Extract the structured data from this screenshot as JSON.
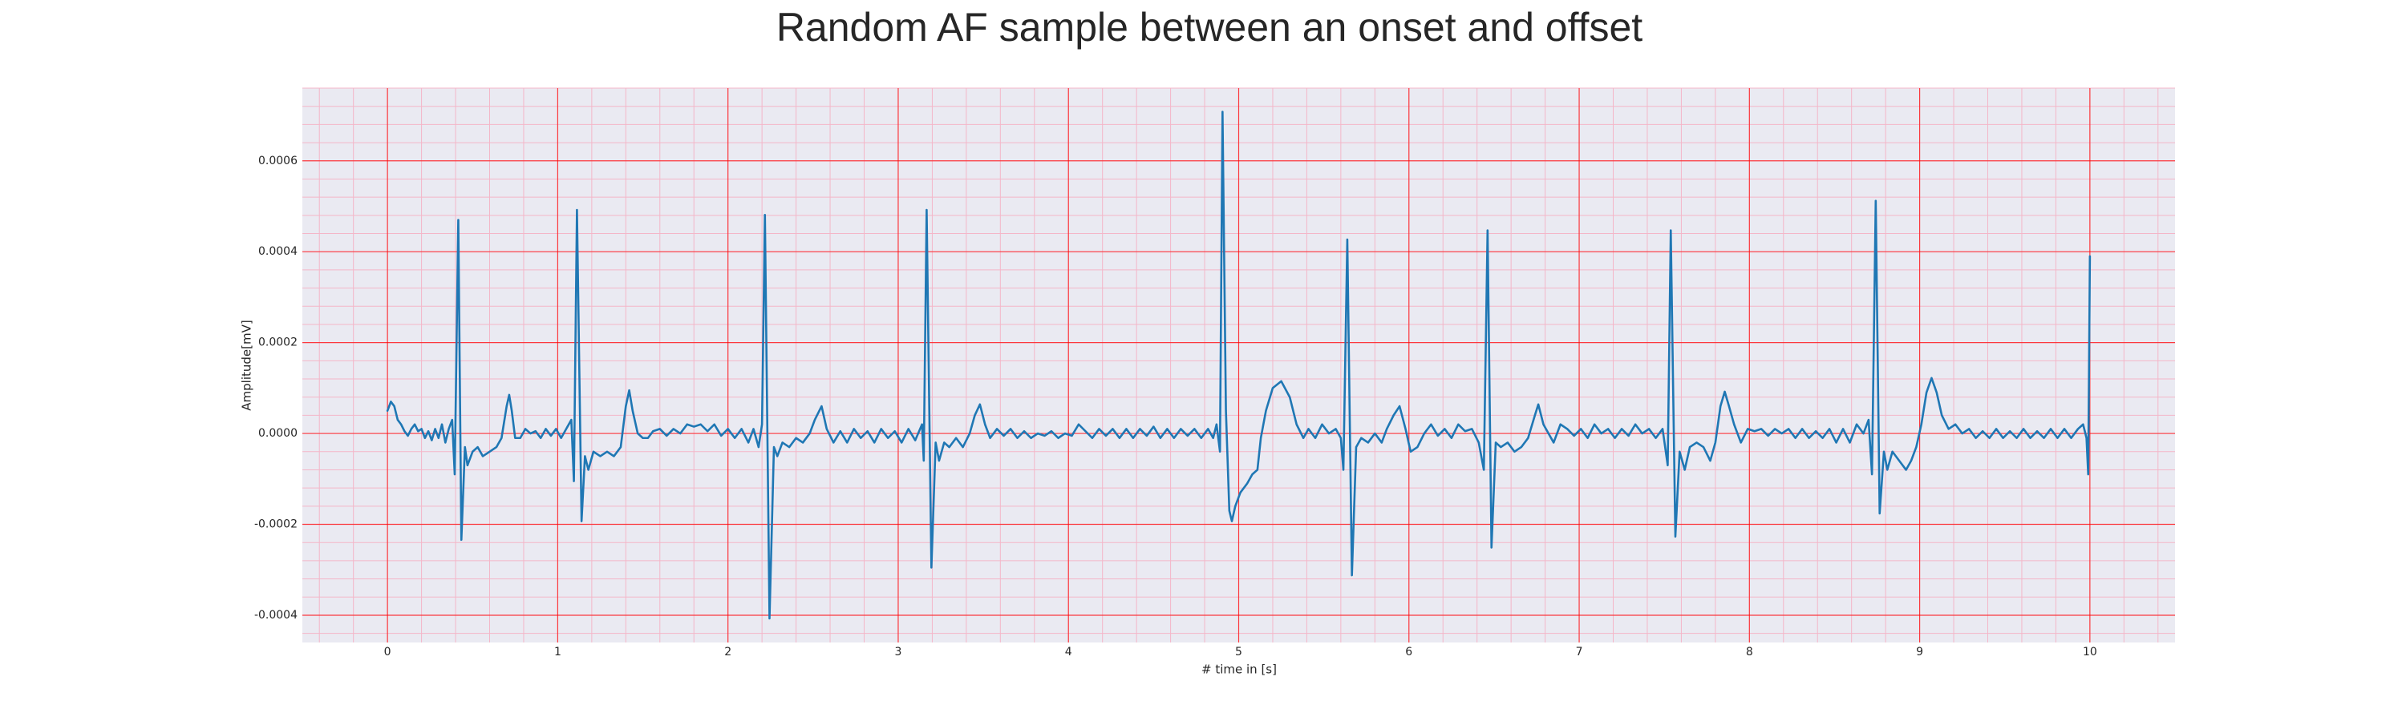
{
  "chart_data": {
    "type": "line",
    "title": "Random AF sample between an onset and offset",
    "x_label": "# time in [s]",
    "y_label": "Amplitude[mV]",
    "color": "#1f77b4",
    "grid": true,
    "grid_color": "#ff0000",
    "minor_grid": true,
    "minor_grid_color": "#f4b6c8",
    "background": "#eaeaf2",
    "xlim": [
      -0.5,
      10.5
    ],
    "ylim": [
      -0.00046,
      0.00076
    ],
    "xticks": [
      0,
      1,
      2,
      3,
      4,
      5,
      6,
      7,
      8,
      9,
      10
    ],
    "yticks": [
      -0.0004,
      -0.0002,
      {
        "value": 0,
        "label": "0.0000"
      },
      0.0002,
      0.0004,
      0.0006
    ],
    "x": [
      0,
      0.02,
      0.04,
      0.06,
      0.08,
      0.1,
      0.12,
      0.14,
      0.16,
      0.18,
      0.2,
      0.22,
      0.24,
      0.26,
      0.28,
      0.3,
      0.32,
      0.34,
      0.36,
      0.38,
      0.395,
      0.416,
      0.434,
      0.455,
      0.47,
      0.5,
      0.53,
      0.56,
      0.6,
      0.64,
      0.67,
      0.7,
      0.715,
      0.73,
      0.75,
      0.78,
      0.81,
      0.84,
      0.87,
      0.9,
      0.93,
      0.96,
      0.99,
      1.02,
      1.05,
      1.08,
      1.095,
      1.113,
      1.14,
      1.16,
      1.18,
      1.21,
      1.25,
      1.29,
      1.33,
      1.37,
      1.4,
      1.42,
      1.44,
      1.47,
      1.5,
      1.53,
      1.56,
      1.6,
      1.64,
      1.68,
      1.72,
      1.76,
      1.8,
      1.84,
      1.88,
      1.92,
      1.96,
      2,
      2.04,
      2.08,
      2.12,
      2.15,
      2.18,
      2.2,
      2.217,
      2.244,
      2.27,
      2.29,
      2.32,
      2.36,
      2.4,
      2.44,
      2.48,
      2.51,
      2.55,
      2.58,
      2.62,
      2.66,
      2.7,
      2.74,
      2.78,
      2.82,
      2.86,
      2.9,
      2.94,
      2.98,
      3.02,
      3.06,
      3.1,
      3.14,
      3.15,
      3.167,
      3.195,
      3.22,
      3.24,
      3.27,
      3.3,
      3.34,
      3.38,
      3.42,
      3.45,
      3.48,
      3.51,
      3.54,
      3.58,
      3.62,
      3.66,
      3.7,
      3.74,
      3.78,
      3.82,
      3.86,
      3.9,
      3.94,
      3.98,
      4.02,
      4.06,
      4.1,
      4.14,
      4.18,
      4.22,
      4.26,
      4.3,
      4.34,
      4.38,
      4.42,
      4.46,
      4.5,
      4.54,
      4.58,
      4.62,
      4.66,
      4.7,
      4.74,
      4.78,
      4.82,
      4.85,
      4.87,
      4.89,
      4.905,
      4.925,
      4.945,
      4.96,
      4.98,
      5.01,
      5.05,
      5.08,
      5.11,
      5.13,
      5.16,
      5.2,
      5.25,
      5.3,
      5.34,
      5.38,
      5.41,
      5.45,
      5.49,
      5.53,
      5.57,
      5.6,
      5.615,
      5.638,
      5.665,
      5.69,
      5.72,
      5.76,
      5.8,
      5.84,
      5.87,
      5.91,
      5.945,
      5.98,
      6.01,
      6.05,
      6.09,
      6.13,
      6.17,
      6.21,
      6.25,
      6.29,
      6.33,
      6.37,
      6.41,
      6.44,
      6.462,
      6.485,
      6.51,
      6.54,
      6.58,
      6.62,
      6.66,
      6.7,
      6.74,
      6.76,
      6.79,
      6.82,
      6.85,
      6.89,
      6.93,
      6.97,
      7.01,
      7.05,
      7.09,
      7.13,
      7.17,
      7.21,
      7.25,
      7.29,
      7.33,
      7.37,
      7.41,
      7.45,
      7.49,
      7.52,
      7.538,
      7.565,
      7.59,
      7.62,
      7.65,
      7.69,
      7.73,
      7.77,
      7.8,
      7.83,
      7.855,
      7.88,
      7.91,
      7.95,
      7.99,
      8.03,
      8.07,
      8.11,
      8.15,
      8.19,
      8.23,
      8.27,
      8.31,
      8.35,
      8.39,
      8.43,
      8.47,
      8.51,
      8.55,
      8.59,
      8.63,
      8.67,
      8.7,
      8.72,
      8.742,
      8.765,
      8.79,
      8.81,
      8.84,
      8.88,
      8.92,
      8.95,
      8.98,
      9.01,
      9.04,
      9.07,
      9.1,
      9.13,
      9.17,
      9.21,
      9.25,
      9.29,
      9.33,
      9.37,
      9.41,
      9.45,
      9.49,
      9.53,
      9.57,
      9.61,
      9.65,
      9.69,
      9.73,
      9.77,
      9.81,
      9.85,
      9.89,
      9.93,
      9.96,
      9.98,
      9.99,
      10
    ],
    "values": [
      5e-05,
      7e-05,
      6e-05,
      3e-05,
      2e-05,
      5e-06,
      -5e-06,
      1e-05,
      2e-05,
      5e-06,
      1e-05,
      -1e-05,
      5e-06,
      -1.5e-05,
      1e-05,
      -1e-05,
      2e-05,
      -2e-05,
      1e-05,
      3e-05,
      -9e-05,
      0.00047,
      -0.000234,
      -3e-05,
      -7e-05,
      -4e-05,
      -3e-05,
      -5e-05,
      -4e-05,
      -3e-05,
      -1e-05,
      6e-05,
      8.5e-05,
      5e-05,
      -1e-05,
      -1e-05,
      1e-05,
      0,
      5e-06,
      -1e-05,
      1e-05,
      -5e-06,
      1e-05,
      -1e-05,
      1e-05,
      3e-05,
      -0.000105,
      0.000492,
      -0.000193,
      -5e-05,
      -8e-05,
      -4e-05,
      -5e-05,
      -4e-05,
      -5e-05,
      -3e-05,
      6e-05,
      9.5e-05,
      5e-05,
      0,
      -1e-05,
      -1e-05,
      5e-06,
      1e-05,
      -5e-06,
      1e-05,
      0,
      2e-05,
      1.5e-05,
      2e-05,
      5e-06,
      2e-05,
      -5e-06,
      1e-05,
      -1e-05,
      1e-05,
      -2e-05,
      1e-05,
      -3e-05,
      2e-05,
      0.000481,
      -0.000407,
      -3e-05,
      -5e-05,
      -2e-05,
      -3e-05,
      -1e-05,
      -2e-05,
      0,
      3e-05,
      6e-05,
      1e-05,
      -2e-05,
      5e-06,
      -2e-05,
      1e-05,
      -1e-05,
      5e-06,
      -2e-05,
      1e-05,
      -1e-05,
      5e-06,
      -2e-05,
      1e-05,
      -1.5e-05,
      2e-05,
      -6e-05,
      0.000492,
      -0.000295,
      -2e-05,
      -6e-05,
      -2e-05,
      -3e-05,
      -1e-05,
      -3e-05,
      0,
      4e-05,
      6.4e-05,
      2e-05,
      -1e-05,
      1e-05,
      -5e-06,
      1e-05,
      -1e-05,
      5e-06,
      -1e-05,
      0,
      -5e-06,
      5e-06,
      -1e-05,
      0,
      -5e-06,
      2e-05,
      5e-06,
      -1e-05,
      1e-05,
      -5e-06,
      1e-05,
      -1e-05,
      1e-05,
      -1e-05,
      1e-05,
      -5e-06,
      1.5e-05,
      -1e-05,
      1e-05,
      -1e-05,
      1e-05,
      -5e-06,
      1e-05,
      -1e-05,
      1e-05,
      -1e-05,
      2e-05,
      -4e-05,
      0.000708,
      5e-05,
      -0.00017,
      -0.000193,
      -0.00016,
      -0.00013,
      -0.00011,
      -9e-05,
      -8e-05,
      -1e-05,
      5e-05,
      0.0001,
      0.000115,
      8e-05,
      2e-05,
      -1e-05,
      1e-05,
      -1e-05,
      2e-05,
      0,
      1e-05,
      -1e-05,
      -8e-05,
      0.000427,
      -0.000312,
      -3e-05,
      -1e-05,
      -2e-05,
      0,
      -2e-05,
      1e-05,
      4e-05,
      6e-05,
      1e-05,
      -4e-05,
      -3e-05,
      0,
      2e-05,
      -5e-06,
      1e-05,
      -1e-05,
      2e-05,
      5e-06,
      1e-05,
      -2e-05,
      -8e-05,
      0.000447,
      -0.000251,
      -2e-05,
      -3e-05,
      -2e-05,
      -4e-05,
      -3e-05,
      -1e-05,
      4e-05,
      6.4e-05,
      2e-05,
      0,
      -2e-05,
      2e-05,
      1e-05,
      -5e-06,
      1e-05,
      -1e-05,
      2e-05,
      0,
      1e-05,
      -1e-05,
      1e-05,
      -5e-06,
      2e-05,
      0,
      1e-05,
      -1e-05,
      1e-05,
      -7e-05,
      0.000447,
      -0.000227,
      -4e-05,
      -8e-05,
      -3e-05,
      -2e-05,
      -3e-05,
      -6e-05,
      -2e-05,
      6e-05,
      9.2e-05,
      6e-05,
      2e-05,
      -2e-05,
      1e-05,
      5e-06,
      1e-05,
      -5e-06,
      1e-05,
      0,
      1e-05,
      -1e-05,
      1e-05,
      -1e-05,
      5e-06,
      -1e-05,
      1e-05,
      -2e-05,
      1e-05,
      -2e-05,
      2e-05,
      0,
      3e-05,
      -9e-05,
      0.000512,
      -0.000176,
      -4e-05,
      -8e-05,
      -4e-05,
      -6e-05,
      -8e-05,
      -6e-05,
      -3e-05,
      2e-05,
      9e-05,
      0.000122,
      9e-05,
      4e-05,
      1e-05,
      2e-05,
      0,
      1e-05,
      -1e-05,
      5e-06,
      -1e-05,
      1e-05,
      -1e-05,
      5e-06,
      -1e-05,
      1e-05,
      -1e-05,
      5e-06,
      -1e-05,
      1e-05,
      -1e-05,
      1e-05,
      -1e-05,
      1e-05,
      2e-05,
      -1e-05,
      -9e-05,
      0.00039
    ]
  }
}
